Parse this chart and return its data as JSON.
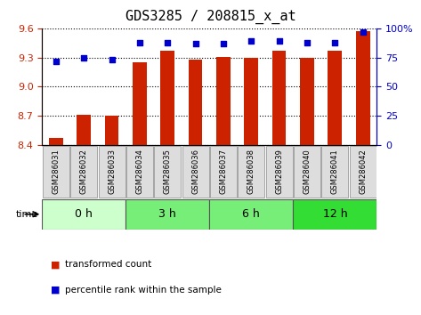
{
  "title": "GDS3285 / 208815_x_at",
  "samples": [
    "GSM286031",
    "GSM286032",
    "GSM286033",
    "GSM286034",
    "GSM286035",
    "GSM286036",
    "GSM286037",
    "GSM286038",
    "GSM286039",
    "GSM286040",
    "GSM286041",
    "GSM286042"
  ],
  "bar_values": [
    8.47,
    8.71,
    8.7,
    9.25,
    9.37,
    9.28,
    9.31,
    9.3,
    9.37,
    9.3,
    9.37,
    9.57
  ],
  "dot_values": [
    72,
    75,
    73,
    88,
    88,
    87,
    87,
    89,
    89,
    88,
    88,
    97
  ],
  "bar_bottom": 8.4,
  "ylim": [
    8.4,
    9.6
  ],
  "y_ticks": [
    8.4,
    8.7,
    9.0,
    9.3,
    9.6
  ],
  "right_ylim": [
    0,
    100
  ],
  "right_yticks": [
    0,
    25,
    50,
    75,
    100
  ],
  "right_yticklabels": [
    "0",
    "25",
    "50",
    "75",
    "100%"
  ],
  "bar_color": "#cc2200",
  "dot_color": "#0000cc",
  "grid_color": "#000000",
  "groups": [
    {
      "label": "0 h",
      "start": 0,
      "end": 3,
      "color": "#ccffcc"
    },
    {
      "label": "3 h",
      "start": 3,
      "end": 6,
      "color": "#77ee77"
    },
    {
      "label": "6 h",
      "start": 6,
      "end": 9,
      "color": "#77ee77"
    },
    {
      "label": "12 h",
      "start": 9,
      "end": 12,
      "color": "#33dd33"
    }
  ],
  "time_label": "time",
  "legend_bar_label": "transformed count",
  "legend_dot_label": "percentile rank within the sample",
  "bar_color_left": "#cc2200",
  "bar_color_right": "#0000cc",
  "title_fontsize": 11,
  "tick_fontsize": 8,
  "bar_width": 0.5
}
